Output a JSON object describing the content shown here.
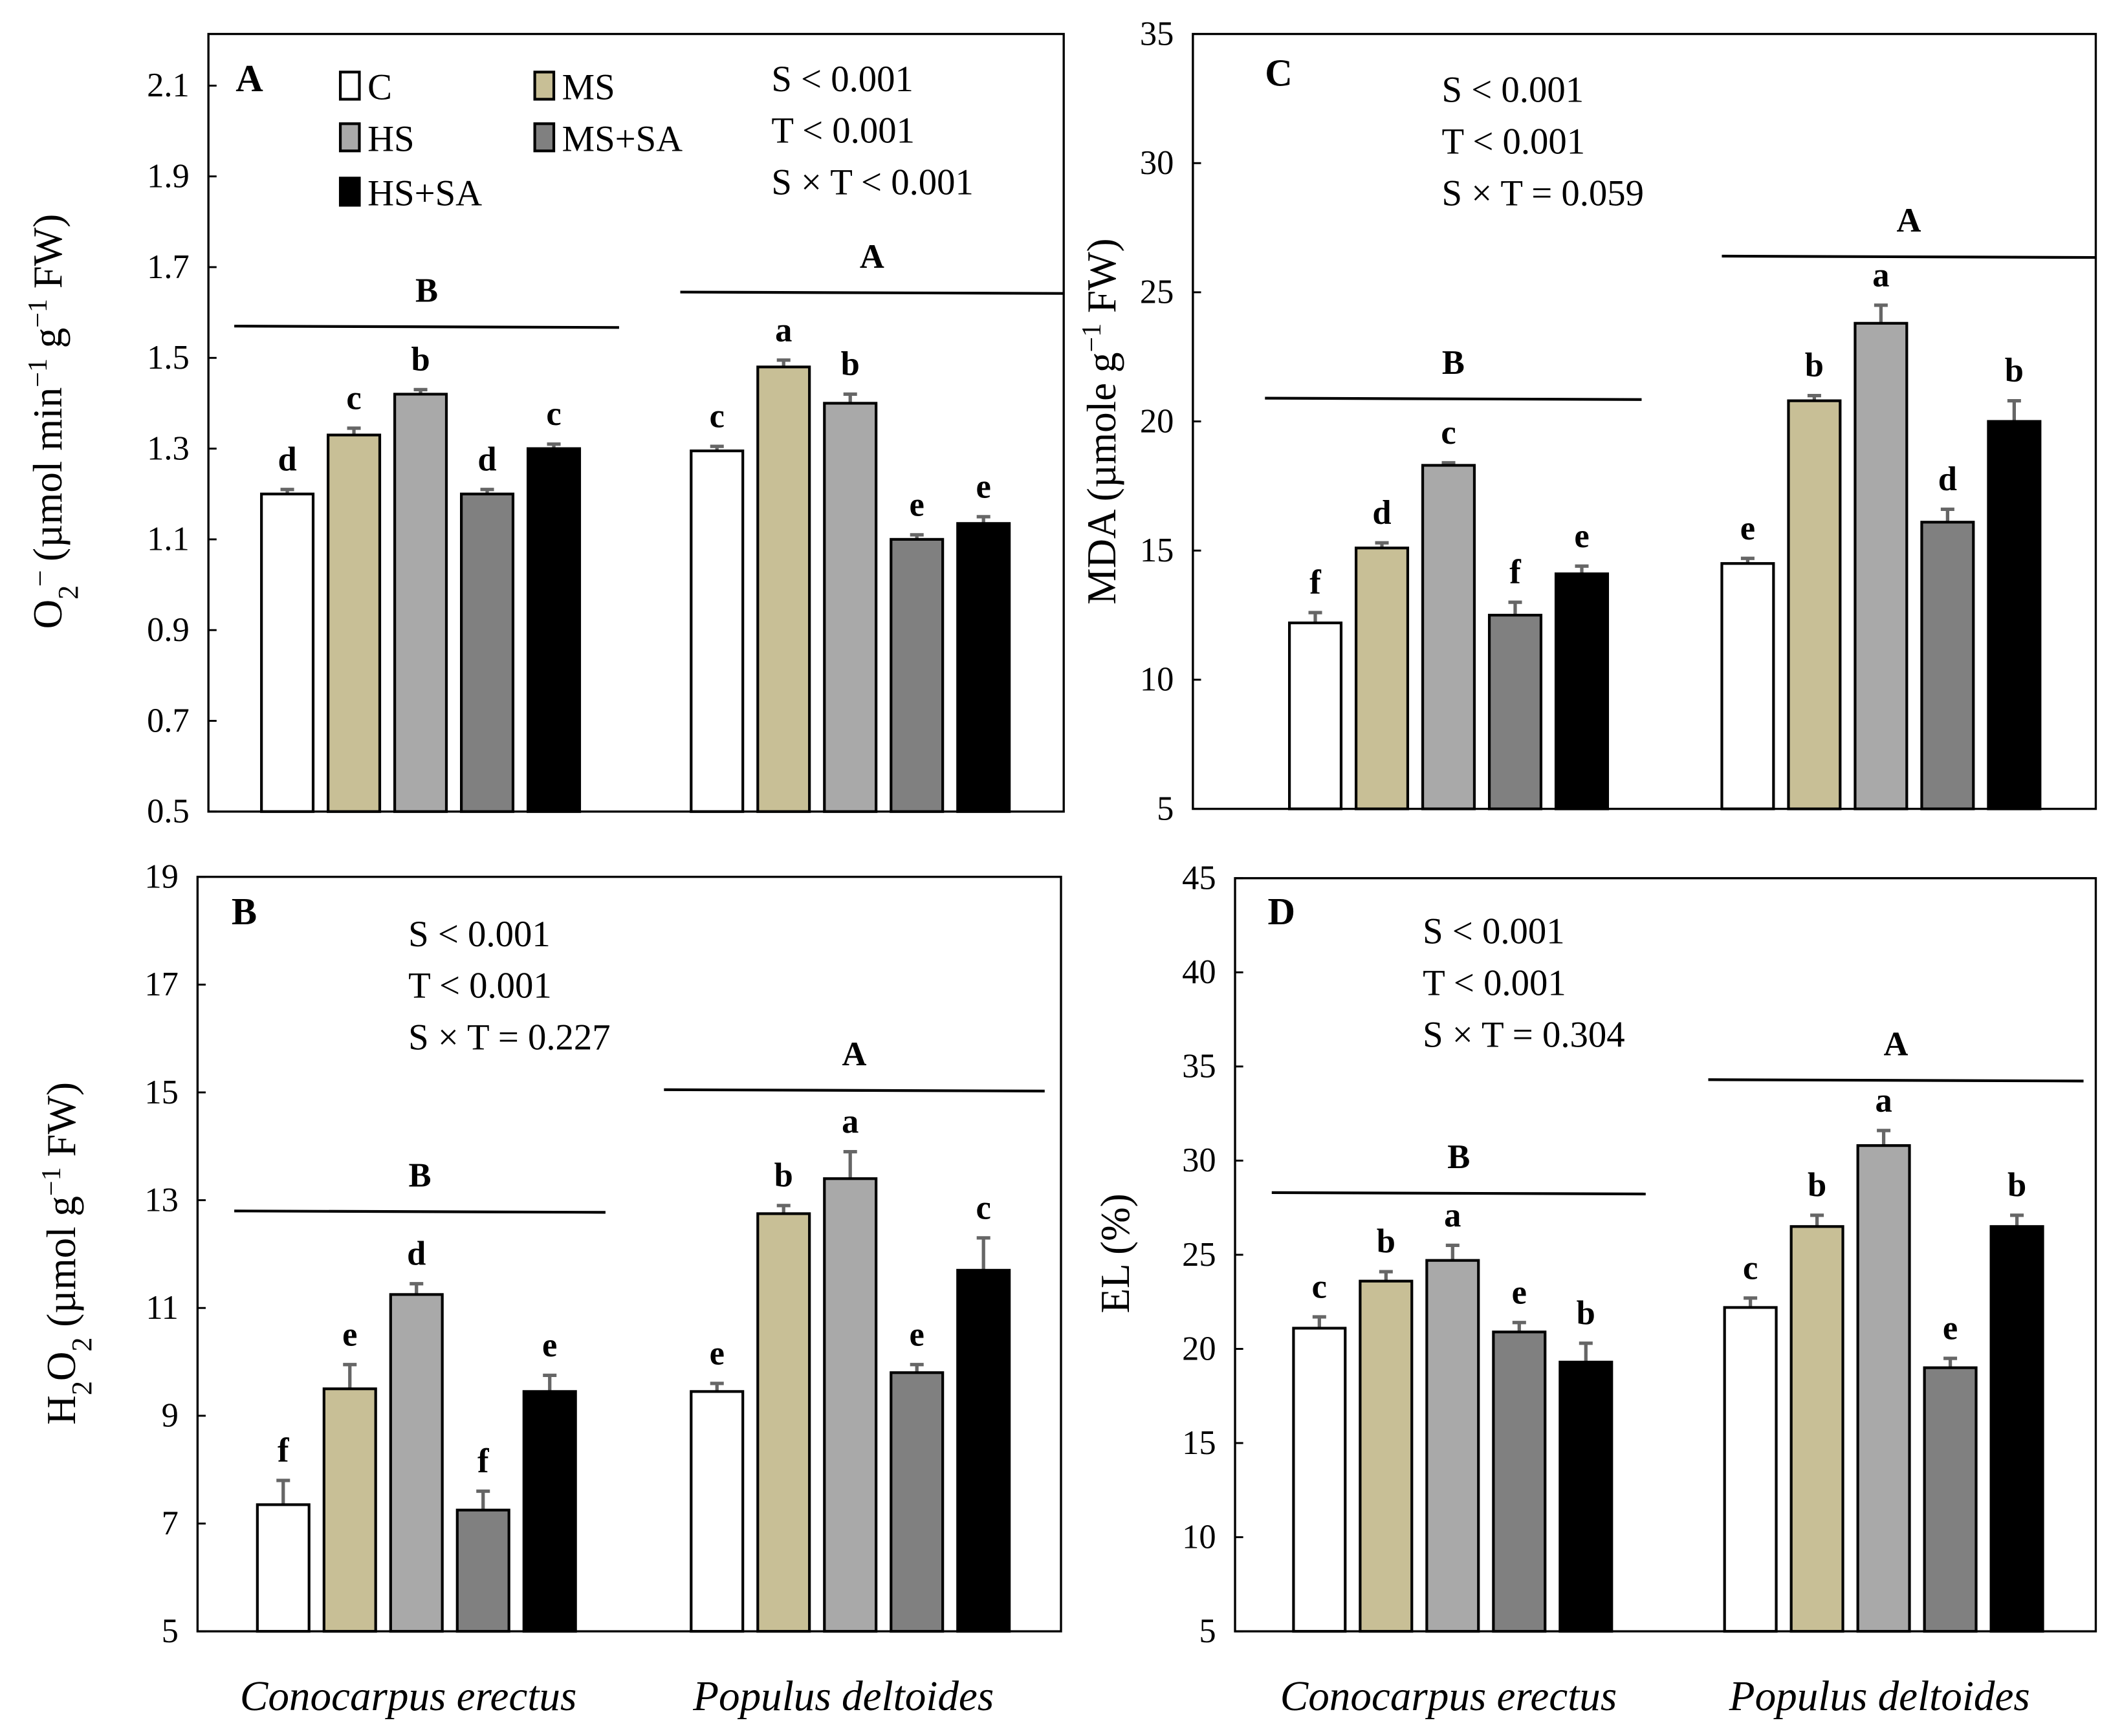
{
  "legend": [
    {
      "name": "C",
      "color": "#ffffff"
    },
    {
      "name": "MS",
      "color": "#c8bf96"
    },
    {
      "name": "HS",
      "color": "#a9a9a9"
    },
    {
      "name": "MS+SA",
      "color": "#808080"
    },
    {
      "name": "HS+SA",
      "color": "#000000"
    }
  ],
  "chart_data": [
    {
      "panel": "A",
      "type": "bar",
      "categories": [
        "Conocarpus erectus",
        "Populus deltoides"
      ],
      "ylabel_parts": [
        {
          "t": "O"
        },
        {
          "t": "2",
          "sub": true
        },
        {
          "t": "–",
          "sup": true
        },
        {
          "t": " (µmol min"
        },
        {
          "t": "−1",
          "sup": true
        },
        {
          "t": " g"
        },
        {
          "t": "−1",
          "sup": true
        },
        {
          "t": " FW)"
        }
      ],
      "ylim": [
        0.5,
        2.2
      ],
      "yticks": [
        "0.5",
        "0.7",
        "0.9",
        "1.1",
        "1.3",
        "1.5",
        "1.7",
        "1.9",
        "2.1"
      ],
      "series": [
        {
          "name": "C",
          "values": [
            1.2,
            1.295
          ],
          "errors": [
            0.01,
            0.01
          ],
          "letters": [
            "d",
            "c"
          ]
        },
        {
          "name": "MS",
          "values": [
            1.33,
            1.48
          ],
          "errors": [
            0.015,
            0.015
          ],
          "letters": [
            "c",
            "a"
          ]
        },
        {
          "name": "HS",
          "values": [
            1.42,
            1.4
          ],
          "errors": [
            0.01,
            0.02
          ],
          "letters": [
            "b",
            "b"
          ]
        },
        {
          "name": "MS+SA",
          "values": [
            1.2,
            1.1
          ],
          "errors": [
            0.01,
            0.01
          ],
          "letters": [
            "d",
            "e"
          ]
        },
        {
          "name": "HS+SA",
          "values": [
            1.3,
            1.135
          ],
          "errors": [
            0.01,
            0.015
          ],
          "letters": [
            "c",
            "e"
          ]
        }
      ],
      "group_letters": [
        "B",
        "A"
      ],
      "group_line_values": [
        1.57,
        1.645
      ],
      "stats": [
        "S < 0.001",
        "T < 0.001",
        "S × T < 0.001"
      ]
    },
    {
      "panel": "C",
      "type": "bar",
      "categories": [
        "Conocarpus erectus",
        "Populus deltoides"
      ],
      "ylabel_parts": [
        {
          "t": "MDA (µmole g"
        },
        {
          "t": "−1",
          "sup": true
        },
        {
          "t": " FW)"
        }
      ],
      "ylim": [
        5,
        35
      ],
      "yticks": [
        "5",
        "10",
        "15",
        "20",
        "25",
        "30",
        "35"
      ],
      "series": [
        {
          "name": "C",
          "values": [
            12.2,
            14.5
          ],
          "errors": [
            0.4,
            0.2
          ],
          "letters": [
            "f",
            "e"
          ]
        },
        {
          "name": "MS",
          "values": [
            15.1,
            20.8
          ],
          "errors": [
            0.2,
            0.2
          ],
          "letters": [
            "d",
            "b"
          ]
        },
        {
          "name": "HS",
          "values": [
            18.3,
            23.8
          ],
          "errors": [
            0.1,
            0.7
          ],
          "letters": [
            "c",
            "a"
          ]
        },
        {
          "name": "MS+SA",
          "values": [
            12.5,
            16.1
          ],
          "errors": [
            0.5,
            0.5
          ],
          "letters": [
            "f",
            "d"
          ]
        },
        {
          "name": "HS+SA",
          "values": [
            14.1,
            20.0
          ],
          "errors": [
            0.3,
            0.8
          ],
          "letters": [
            "e",
            "b"
          ]
        }
      ],
      "group_letters": [
        "B",
        "A"
      ],
      "group_line_values": [
        20.9,
        26.4
      ],
      "stats": [
        "S < 0.001",
        "T < 0.001",
        "S × T = 0.059"
      ]
    },
    {
      "panel": "B",
      "type": "bar",
      "categories": [
        "Conocarpus erectus",
        "Populus deltoides"
      ],
      "ylabel_parts": [
        {
          "t": "H"
        },
        {
          "t": "2",
          "sub": true
        },
        {
          "t": "O"
        },
        {
          "t": "2",
          "sub": true
        },
        {
          "t": " (µmol g"
        },
        {
          "t": "−1",
          "sup": true
        },
        {
          "t": " FW)"
        }
      ],
      "ylim": [
        5,
        19
      ],
      "yticks": [
        "5",
        "7",
        "9",
        "11",
        "13",
        "15",
        "17",
        "19"
      ],
      "series": [
        {
          "name": "C",
          "values": [
            7.35,
            9.45
          ],
          "errors": [
            0.45,
            0.15
          ],
          "letters": [
            "f",
            "e"
          ]
        },
        {
          "name": "MS",
          "values": [
            9.5,
            12.75
          ],
          "errors": [
            0.45,
            0.15
          ],
          "letters": [
            "e",
            "b"
          ]
        },
        {
          "name": "HS",
          "values": [
            11.25,
            13.4
          ],
          "errors": [
            0.2,
            0.5
          ],
          "letters": [
            "d",
            "a"
          ]
        },
        {
          "name": "MS+SA",
          "values": [
            7.25,
            9.8
          ],
          "errors": [
            0.35,
            0.15
          ],
          "letters": [
            "f",
            "e"
          ]
        },
        {
          "name": "HS+SA",
          "values": [
            9.45,
            11.7
          ],
          "errors": [
            0.3,
            0.6
          ],
          "letters": [
            "e",
            "c"
          ]
        }
      ],
      "group_letters": [
        "B",
        "A"
      ],
      "group_line_values": [
        12.8,
        15.05
      ],
      "stats": [
        "S < 0.001",
        "T < 0.001",
        "S × T = 0.227"
      ]
    },
    {
      "panel": "D",
      "type": "bar",
      "categories": [
        "Conocarpus erectus",
        "Populus deltoides"
      ],
      "ylabel_parts": [
        {
          "t": "EL (%)"
        }
      ],
      "ylim": [
        5,
        45
      ],
      "yticks": [
        "5",
        "10",
        "15",
        "20",
        "25",
        "30",
        "35",
        "40",
        "45"
      ],
      "series": [
        {
          "name": "C",
          "values": [
            21.1,
            22.2
          ],
          "errors": [
            0.6,
            0.5
          ],
          "letters": [
            "c",
            "c"
          ]
        },
        {
          "name": "MS",
          "values": [
            23.6,
            26.5
          ],
          "errors": [
            0.5,
            0.6
          ],
          "letters": [
            "b",
            "b"
          ]
        },
        {
          "name": "HS",
          "values": [
            24.7,
            30.8
          ],
          "errors": [
            0.8,
            0.8
          ],
          "letters": [
            "a",
            "a"
          ]
        },
        {
          "name": "MS+SA",
          "values": [
            20.9,
            19.0
          ],
          "errors": [
            0.5,
            0.5
          ],
          "letters": [
            "e",
            "e"
          ]
        },
        {
          "name": "HS+SA",
          "values": [
            19.3,
            26.5
          ],
          "errors": [
            1.0,
            0.6
          ],
          "letters": [
            "b",
            "b"
          ]
        }
      ],
      "group_letters": [
        "B",
        "A"
      ],
      "group_line_values": [
        28.3,
        34.3
      ],
      "stats": [
        "S < 0.001",
        "T < 0.001",
        "S × T = 0.304"
      ]
    }
  ]
}
